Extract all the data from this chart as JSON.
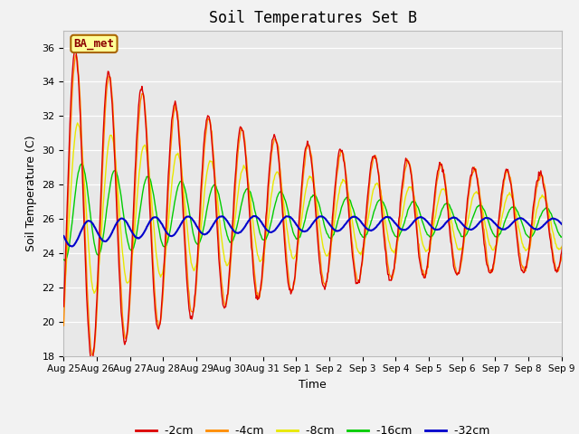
{
  "title": "Soil Temperatures Set B",
  "xlabel": "Time",
  "ylabel": "Soil Temperature (C)",
  "ylim": [
    18,
    37
  ],
  "yticks": [
    18,
    20,
    22,
    24,
    26,
    28,
    30,
    32,
    34,
    36
  ],
  "background_color": "#f2f2f2",
  "plot_bg_color": "#e8e8e8",
  "line_colors": {
    "-2cm": "#dd0000",
    "-4cm": "#ff8c00",
    "-8cm": "#e8e800",
    "-16cm": "#00cc00",
    "-32cm": "#0000cc"
  },
  "legend_label": "BA_met",
  "legend_bg": "#ffff99",
  "legend_border": "#aa6600",
  "n_days": 15.5,
  "figsize": [
    6.4,
    4.8
  ],
  "dpi": 100
}
